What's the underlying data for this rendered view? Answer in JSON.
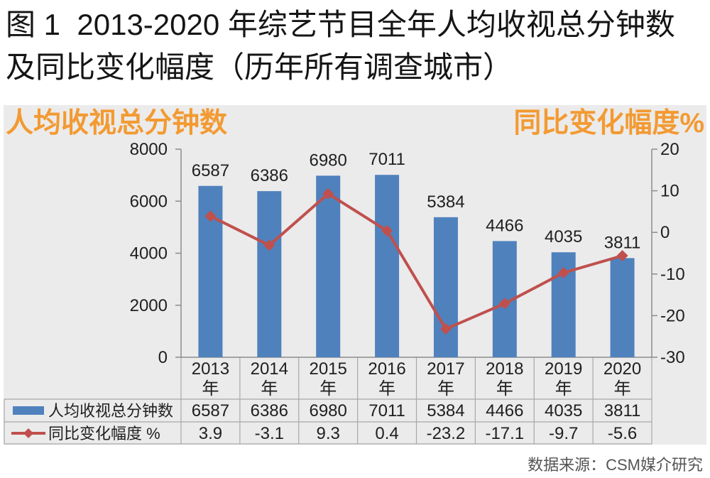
{
  "chart_data": {
    "type": "bar",
    "title": [
      "图 1  2013-2020 年综艺节目全年人均收视总分钟数",
      "及同比变化幅度（历年所有调查城市）"
    ],
    "categories": [
      "2013年",
      "2014年",
      "2015年",
      "2016年",
      "2017年",
      "2018年",
      "2019年",
      "2020年"
    ],
    "series": [
      {
        "name": "人均收视总分钟数",
        "type": "bar",
        "axis": "left",
        "color": "#4F81BD",
        "values": [
          6587,
          6386,
          6980,
          7011,
          5384,
          4466,
          4035,
          3811
        ]
      },
      {
        "name": "同比变化幅度 %",
        "type": "line",
        "axis": "right",
        "marker": "diamond",
        "color": "#C0504D",
        "values": [
          3.9,
          -3.1,
          9.3,
          0.4,
          -23.2,
          -17.1,
          -9.7,
          -5.6
        ]
      }
    ],
    "ylabel": "人均收视总分钟数",
    "y2label": "同比变化幅度%",
    "axis_title_color": "#F39A32",
    "ylim": [
      0,
      8000
    ],
    "y2lim": [
      -30,
      20
    ],
    "yticks": [
      0,
      2000,
      4000,
      6000,
      8000
    ],
    "y2ticks": [
      -30,
      -20,
      -10,
      0,
      10,
      20
    ],
    "grid": false,
    "data_labels": true,
    "legend": "bottom-left data table"
  },
  "source": "数据来源：CSM媒介研究"
}
